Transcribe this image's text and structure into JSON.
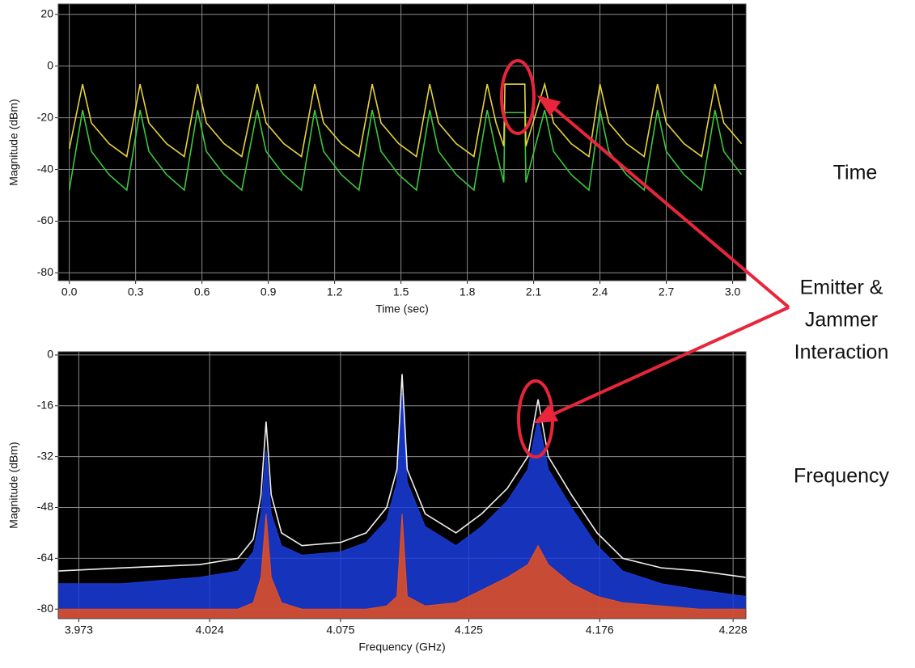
{
  "chart_data": [
    {
      "type": "line",
      "x_label": "Time (sec)",
      "y_label": "Magnitude (dBm)",
      "x": [
        0,
        0.06,
        0.1,
        0.18,
        0.26,
        0.32,
        0.36,
        0.44,
        0.52,
        0.58,
        0.62,
        0.7,
        0.78,
        0.85,
        0.89,
        0.97,
        1.05,
        1.11,
        1.15,
        1.23,
        1.31,
        1.37,
        1.41,
        1.49,
        1.57,
        1.63,
        1.67,
        1.75,
        1.83,
        1.89,
        1.93,
        1.965,
        1.97,
        2.06,
        2.065,
        2.15,
        2.19,
        2.27,
        2.35,
        2.4,
        2.44,
        2.52,
        2.6,
        2.66,
        2.7,
        2.78,
        2.86,
        2.92,
        2.96,
        3.04
      ],
      "series": [
        {
          "color": "#3cc83c",
          "values": [
            -48,
            -17,
            -33,
            -42,
            -48,
            -17,
            -33,
            -42,
            -48,
            -17,
            -33,
            -42,
            -48,
            -17,
            -33,
            -42,
            -48,
            -17,
            -33,
            -42,
            -48,
            -17,
            -33,
            -42,
            -48,
            -17,
            -33,
            -42,
            -48,
            -17,
            -33,
            -45,
            -18,
            -18,
            -45,
            -17,
            -33,
            -42,
            -48,
            -17,
            -33,
            -42,
            -48,
            -17,
            -33,
            -42,
            -48,
            -17,
            -33,
            -42
          ]
        },
        {
          "color": "#e6d23c",
          "values": [
            -32,
            -7,
            -22,
            -30,
            -35,
            -7,
            -22,
            -30,
            -35,
            -7,
            -22,
            -30,
            -35,
            -7,
            -22,
            -30,
            -35,
            -7,
            -22,
            -30,
            -35,
            -7,
            -22,
            -30,
            -35,
            -7,
            -22,
            -30,
            -35,
            -7,
            -22,
            -31,
            -7,
            -7,
            -31,
            -7,
            -22,
            -30,
            -35,
            -7,
            -22,
            -30,
            -35,
            -7,
            -22,
            -30,
            -35,
            -7,
            -22,
            -30
          ]
        }
      ],
      "xlim": [
        -0.05,
        3.06
      ],
      "xticks": [
        {
          "value": 0,
          "label": "0.0"
        },
        0.3,
        0.6,
        0.9,
        1.2,
        1.5,
        1.8,
        2.1,
        2.4,
        2.7,
        {
          "value": 3,
          "label": "3.0"
        }
      ],
      "ylim": [
        -83,
        24
      ],
      "yticks": [
        20,
        0,
        -20,
        -40,
        -60,
        -80
      ],
      "grid": true
    },
    {
      "type": "line",
      "x_label": "Frequency (GHz)",
      "y_label": "Magnitude (dBm)",
      "x": [
        3.965,
        3.99,
        4.02,
        4.035,
        4.041,
        4.044,
        4.046,
        4.048,
        4.052,
        4.06,
        4.075,
        4.085,
        4.093,
        4.097,
        4.099,
        4.101,
        4.108,
        4.12,
        4.13,
        4.14,
        4.148,
        4.152,
        4.156,
        4.165,
        4.175,
        4.185,
        4.2,
        4.215,
        4.233
      ],
      "series": [
        {
          "color": "#1a3cdc",
          "fill": true,
          "values": [
            -72,
            -72,
            -70,
            -68,
            -62,
            -50,
            -30,
            -50,
            -60,
            -63,
            -62,
            -59,
            -52,
            -40,
            -12,
            -40,
            -54,
            -60,
            -54,
            -46,
            -36,
            -20,
            -36,
            -48,
            -60,
            -68,
            -72,
            -74,
            -76
          ]
        },
        {
          "color": "#e8501e",
          "fill": true,
          "values": [
            -80,
            -80,
            -80,
            -80,
            -78,
            -70,
            -50,
            -70,
            -78,
            -80,
            -80,
            -80,
            -79,
            -76,
            -50,
            -76,
            -79,
            -78,
            -74,
            -70,
            -66,
            -60,
            -66,
            -72,
            -76,
            -78,
            -79,
            -80,
            -80
          ]
        },
        {
          "color": "#f0f0f0",
          "values": [
            -68,
            -67,
            -66,
            -64,
            -58,
            -44,
            -21,
            -44,
            -56,
            -60,
            -59,
            -56,
            -48,
            -36,
            -6,
            -36,
            -50,
            -56,
            -50,
            -42,
            -32,
            -14,
            -32,
            -44,
            -56,
            -64,
            -67,
            -68,
            -70
          ]
        }
      ],
      "xlim": [
        3.965,
        4.233
      ],
      "xticks": [
        3.973,
        4.024,
        4.075,
        4.125,
        4.176,
        4.228
      ],
      "ylim": [
        -83,
        1
      ],
      "yticks": [
        0,
        -16,
        -32,
        -48,
        -64,
        -80
      ],
      "grid": true
    }
  ],
  "labels": {
    "time": "Time",
    "interaction": [
      "Emitter &",
      "Jammer",
      "Interaction"
    ],
    "frequency": "Frequency"
  }
}
